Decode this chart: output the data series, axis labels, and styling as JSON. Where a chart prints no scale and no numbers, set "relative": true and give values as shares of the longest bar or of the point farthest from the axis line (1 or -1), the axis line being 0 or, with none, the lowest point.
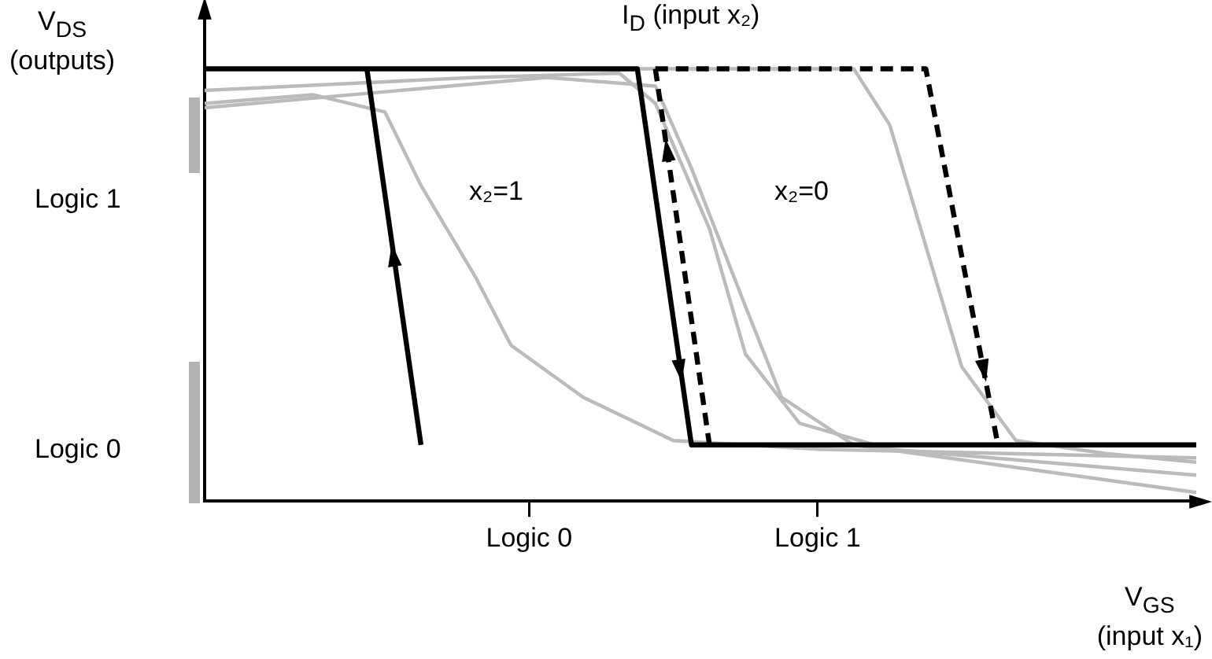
{
  "chart_data": {
    "type": "line",
    "relative": true,
    "xlabel": "V$_{GS}$ (input x₁)",
    "ylabel": "V$_{DS}$ (outputs)",
    "annotations": [
      "I$_{D}$ (input x₂)",
      "x₂=1",
      "x₂=0",
      "Logic 1",
      "Logic 0"
    ],
    "categories": [
      null,
      null,
      null,
      null,
      null,
      null,
      null,
      null,
      null,
      null,
      null,
      null,
      null,
      null,
      null,
      null,
      null,
      null,
      "Logic 0",
      null,
      null,
      null,
      null,
      null,
      null,
      null,
      null,
      null,
      null,
      null,
      null,
      null,
      null,
      null,
      "Logic 1",
      null,
      null,
      null,
      null,
      null,
      null,
      null,
      null,
      null,
      null,
      null,
      null,
      null,
      null,
      null,
      null,
      null,
      null,
      null,
      null,
      null
    ],
    "grid": false,
    "legend": false,
    "marker": "none",
    "series": [
      {
        "type": "line",
        "color": "#000000",
        "line_style": "solid",
        "values": [
          1,
          null,
          null,
          null,
          null,
          null,
          null,
          null,
          null,
          null,
          null,
          null,
          null,
          null,
          null,
          null,
          null,
          null,
          null,
          null,
          null,
          null,
          null,
          null,
          1,
          null,
          null,
          0.13,
          null,
          null,
          null,
          null,
          null,
          null,
          null,
          null,
          null,
          null,
          null,
          null,
          null,
          null,
          null,
          null,
          null,
          null,
          null,
          null,
          null,
          null,
          null,
          null,
          null,
          null,
          null,
          0.13
        ]
      },
      {
        "type": "line",
        "color": "#000000",
        "line_style": "solid",
        "values": [
          null,
          null,
          null,
          null,
          null,
          null,
          null,
          null,
          null,
          1,
          null,
          null,
          0.13,
          null,
          null,
          null,
          null,
          null,
          null,
          null,
          null,
          null,
          null,
          null,
          null,
          null,
          null,
          null,
          null,
          null,
          null,
          null,
          null,
          null,
          null,
          null,
          null,
          null,
          null,
          null,
          null,
          null,
          null,
          null,
          null,
          null,
          null,
          null,
          null,
          null,
          null,
          null,
          null,
          null,
          null,
          null
        ]
      },
      {
        "type": "line",
        "color": "#000000",
        "line_style": "dashed",
        "values": [
          null,
          null,
          null,
          null,
          null,
          null,
          null,
          null,
          null,
          null,
          null,
          null,
          null,
          null,
          null,
          null,
          null,
          null,
          null,
          null,
          null,
          null,
          null,
          null,
          null,
          1,
          null,
          null,
          null,
          null,
          null,
          null,
          null,
          null,
          null,
          null,
          null,
          null,
          null,
          null,
          1,
          null,
          null,
          null,
          0.13,
          null,
          null,
          null,
          null,
          null,
          null,
          null,
          null,
          null,
          null,
          null
        ]
      },
      {
        "type": "line",
        "color": "#000000",
        "line_style": "dashed",
        "values": [
          null,
          null,
          null,
          null,
          null,
          null,
          null,
          null,
          null,
          null,
          null,
          null,
          null,
          null,
          null,
          null,
          null,
          null,
          null,
          null,
          null,
          null,
          null,
          null,
          null,
          1,
          null,
          null,
          0.13,
          null,
          null,
          null,
          null,
          null,
          null,
          null,
          null,
          null,
          null,
          null,
          null,
          null,
          null,
          null,
          null,
          null,
          null,
          null,
          null,
          null,
          null,
          null,
          null,
          null,
          null,
          null
        ]
      },
      {
        "type": "line",
        "color": "#bbbbbb",
        "line_style": "solid",
        "values": [
          0.92,
          null,
          null,
          null,
          null,
          null,
          0.94,
          null,
          null,
          null,
          0.9,
          null,
          0.73,
          null,
          null,
          0.52,
          null,
          0.36,
          null,
          null,
          null,
          0.24,
          null,
          null,
          null,
          null,
          0.14,
          null,
          null,
          null,
          null,
          null,
          null,
          null,
          0.12,
          null,
          null,
          null,
          null,
          null,
          null,
          null,
          null,
          null,
          null,
          null,
          null,
          null,
          null,
          null,
          null,
          null,
          null,
          null,
          null,
          0.1
        ]
      },
      {
        "type": "line",
        "color": "#bbbbbb",
        "line_style": "solid",
        "values": [
          0.95,
          null,
          null,
          null,
          null,
          null,
          null,
          null,
          null,
          null,
          null,
          null,
          null,
          null,
          null,
          0.98,
          null,
          null,
          null,
          null,
          null,
          null,
          null,
          0.99,
          null,
          0.92,
          null,
          null,
          0.63,
          null,
          0.34,
          null,
          null,
          0.18,
          null,
          null,
          null,
          null,
          0.12,
          null,
          null,
          null,
          null,
          null,
          null,
          null,
          null,
          null,
          null,
          null,
          null,
          null,
          null,
          null,
          null,
          0.06
        ]
      },
      {
        "type": "line",
        "color": "#bbbbbb",
        "line_style": "solid",
        "values": [
          0.91,
          null,
          null,
          null,
          null,
          null,
          null,
          null,
          null,
          null,
          null,
          null,
          null,
          null,
          null,
          null,
          null,
          null,
          null,
          0.98,
          null,
          null,
          null,
          null,
          null,
          0.96,
          null,
          0.77,
          null,
          null,
          0.45,
          null,
          0.24,
          null,
          null,
          null,
          0.13,
          null,
          null,
          null,
          null,
          null,
          null,
          null,
          null,
          null,
          null,
          null,
          null,
          null,
          null,
          null,
          null,
          null,
          null,
          0.02
        ]
      },
      {
        "type": "line",
        "color": "#bbbbbb",
        "line_style": "solid",
        "values": [
          null,
          null,
          null,
          null,
          null,
          null,
          null,
          null,
          null,
          null,
          null,
          null,
          null,
          null,
          null,
          null,
          null,
          null,
          null,
          null,
          null,
          null,
          null,
          1,
          null,
          null,
          null,
          null,
          null,
          null,
          null,
          null,
          1,
          null,
          null,
          null,
          1,
          null,
          0.87,
          null,
          0.59,
          null,
          0.31,
          null,
          null,
          0.14,
          null,
          null,
          null,
          null,
          0.11,
          null,
          null,
          null,
          null,
          0.09
        ]
      }
    ]
  }
}
